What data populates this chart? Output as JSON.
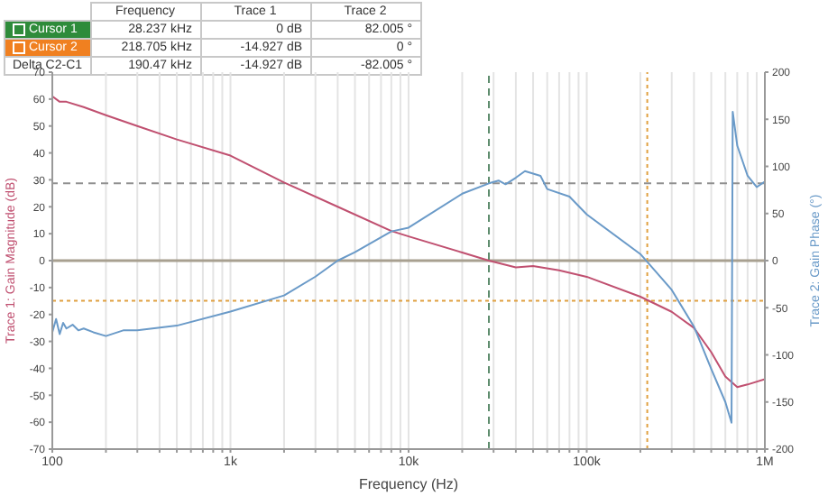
{
  "chart_data": {
    "type": "line",
    "xlabel": "Frequency (Hz)",
    "ylabel": "Trace 1: Gain Magnitude (dB)",
    "y2label": "Trace 2: Gain Phase (°)",
    "annotations": [
      "Frequency",
      "Trace 1",
      "Trace 2",
      "Cursor 1",
      "28.237 kHz",
      "0 dB",
      "82.005 °",
      "Cursor 2",
      "218.705 kHz",
      "-14.927 dB",
      "0 °",
      "Delta C2-C1",
      "190.47 kHz",
      "-14.927 dB",
      "-82.005 °"
    ],
    "log": "x",
    "grid": true,
    "legend": false,
    "marker": "none",
    "line_style": "solid",
    "xlim": [
      100,
      1000000
    ],
    "xticks": [
      {
        "value": 100,
        "label": "100"
      },
      {
        "value": 200,
        "label": null
      },
      {
        "value": 300,
        "label": null
      },
      {
        "value": 400,
        "label": null
      },
      {
        "value": 500,
        "label": null
      },
      {
        "value": 600,
        "label": null
      },
      {
        "value": 700,
        "label": null
      },
      {
        "value": 800,
        "label": null
      },
      {
        "value": 900,
        "label": null
      },
      {
        "value": 1000,
        "label": "1k"
      },
      {
        "value": 2000,
        "label": null
      },
      {
        "value": 3000,
        "label": null
      },
      {
        "value": 4000,
        "label": null
      },
      {
        "value": 5000,
        "label": null
      },
      {
        "value": 6000,
        "label": null
      },
      {
        "value": 7000,
        "label": null
      },
      {
        "value": 8000,
        "label": null
      },
      {
        "value": 9000,
        "label": null
      },
      {
        "value": 10000,
        "label": "10k"
      },
      {
        "value": 20000,
        "label": null
      },
      {
        "value": 30000,
        "label": null
      },
      {
        "value": 40000,
        "label": null
      },
      {
        "value": 50000,
        "label": null
      },
      {
        "value": 60000,
        "label": null
      },
      {
        "value": 70000,
        "label": null
      },
      {
        "value": 80000,
        "label": null
      },
      {
        "value": 90000,
        "label": null
      },
      {
        "value": 100000,
        "label": "100k"
      },
      {
        "value": 200000,
        "label": null
      },
      {
        "value": 300000,
        "label": null
      },
      {
        "value": 400000,
        "label": null
      },
      {
        "value": 500000,
        "label": null
      },
      {
        "value": 600000,
        "label": null
      },
      {
        "value": 700000,
        "label": null
      },
      {
        "value": 800000,
        "label": null
      },
      {
        "value": 900000,
        "label": null
      },
      {
        "value": 1000000,
        "label": "1M"
      }
    ],
    "ylim": [
      -70,
      70
    ],
    "yticks": [
      -70,
      -60,
      -50,
      -40,
      -30,
      -20,
      -10,
      0,
      10,
      20,
      30,
      40,
      50,
      60,
      70
    ],
    "y2lim": [
      -200,
      200
    ],
    "y2ticks": [
      -200,
      -150,
      -100,
      -50,
      0,
      50,
      100,
      150,
      200
    ],
    "ref_lines": [
      {
        "axis": "y",
        "value": 0,
        "color": "#a8a090"
      },
      {
        "axis": "x",
        "value": 28237,
        "color": "#5a8a6a",
        "line_style": "dashed"
      },
      {
        "axis": "x",
        "value": 218705,
        "color": "#e0a040",
        "line_style": "dotted"
      },
      {
        "axis": "y2",
        "value": 82.005,
        "color": "#909090",
        "line_style": "dashed"
      },
      {
        "axis": "y",
        "value": -14.927,
        "color": "#e0a040",
        "line_style": "dotted"
      }
    ],
    "series": [
      {
        "color": "#c05070",
        "x": [
          100,
          110,
          120,
          150,
          200,
          300,
          500,
          1000,
          2000,
          4000,
          8000,
          10000,
          20000,
          28237,
          40000,
          50000,
          70000,
          100000,
          200000,
          300000,
          400000,
          500000,
          600000,
          700000,
          800000,
          1000000
        ],
        "values": [
          61,
          59,
          59,
          57,
          54,
          50,
          45,
          39,
          29,
          20,
          11,
          9,
          3,
          0,
          -2.5,
          -2,
          -3.6,
          -6,
          -13.4,
          -19,
          -25,
          -34,
          -43,
          -47,
          -46,
          -44
        ]
      },
      {
        "color": "#6a9ac8",
        "axis": "y2",
        "x": [
          100,
          105,
          110,
          115,
          120,
          130,
          140,
          150,
          170,
          200,
          250,
          300,
          500,
          1000,
          2000,
          3000,
          4000,
          5000,
          8000,
          10000,
          20000,
          28237,
          32000,
          35000,
          40000,
          45000,
          55000,
          60000,
          80000,
          100000,
          200000,
          300000,
          400000,
          500000,
          600000,
          650000,
          660000,
          700000,
          800000,
          900000,
          1000000
        ],
        "values": [
          -76,
          -62,
          -78,
          -66,
          -72,
          -68,
          -74,
          -72,
          -76,
          -80,
          -74,
          -74,
          -69,
          -54,
          -37,
          -17,
          0,
          9,
          31,
          35,
          71,
          82,
          85,
          81,
          88,
          95,
          90,
          76,
          68,
          49,
          7,
          -31,
          -70,
          -115,
          -150,
          -172,
          158,
          122,
          90,
          78,
          84
        ]
      }
    ]
  }
}
